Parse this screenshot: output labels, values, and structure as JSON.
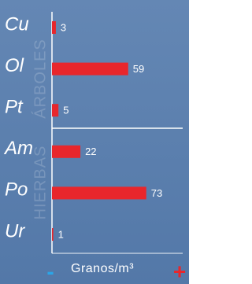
{
  "chart_data": {
    "type": "hbar",
    "categories": [
      "Cu",
      "Ol",
      "Pt",
      "Am",
      "Po",
      "Ur"
    ],
    "values": [
      3,
      59,
      5,
      22,
      73,
      1
    ],
    "color": "#e8262c",
    "xlim": [
      0,
      100
    ],
    "group_labels": [
      "ÁRBOLES",
      "HIERBAS"
    ],
    "x_axis_label": "Granos/m³",
    "controls": [
      "-",
      "+"
    ]
  }
}
